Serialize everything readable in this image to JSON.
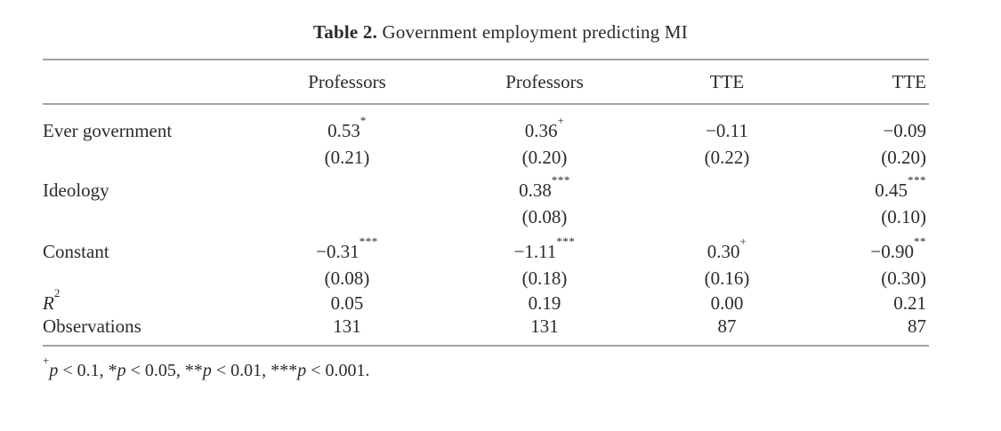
{
  "page": {
    "background": "#ffffff",
    "text_color": "#2b2b2b",
    "rule_color": "#a3a3a3"
  },
  "title": {
    "label": "Table 2.",
    "text": "Government employment predicting MI"
  },
  "table": {
    "headers": [
      "Professors",
      "Professors",
      "TTE",
      "TTE"
    ],
    "rows": [
      {
        "label": "Ever government",
        "coef": [
          "0.53",
          "0.36",
          "−0.11",
          "−0.09"
        ],
        "sig": [
          "*",
          "+",
          "",
          ""
        ],
        "se": [
          "(0.21)",
          "(0.20)",
          "(0.22)",
          "(0.20)"
        ]
      },
      {
        "label": "Ideology",
        "coef": [
          "",
          "0.38",
          "",
          "0.45"
        ],
        "sig": [
          "",
          "***",
          "",
          "***"
        ],
        "se": [
          "",
          "(0.08)",
          "",
          "(0.10)"
        ]
      },
      {
        "label": "Constant",
        "coef": [
          "−0.31",
          "−1.11",
          "0.30",
          "−0.90"
        ],
        "sig": [
          "***",
          "***",
          "+",
          "**"
        ],
        "se": [
          "(0.08)",
          "(0.18)",
          "(0.16)",
          "(0.30)"
        ]
      }
    ],
    "stats": [
      {
        "label": "R",
        "label_sup": "2",
        "values": [
          "0.05",
          "0.19",
          "0.00",
          "0.21"
        ]
      },
      {
        "label": "Observations",
        "values": [
          "131",
          "131",
          "87",
          "87"
        ]
      }
    ]
  },
  "footnote": {
    "sup": "+",
    "segments": [
      {
        "stars": "",
        "p": "p",
        "tail": " < 0.1, "
      },
      {
        "stars": "*",
        "p": "p",
        "tail": " < 0.05, "
      },
      {
        "stars": "**",
        "p": "p",
        "tail": " < 0.01, "
      },
      {
        "stars": "***",
        "p": "p",
        "tail": " < 0.001."
      }
    ]
  }
}
